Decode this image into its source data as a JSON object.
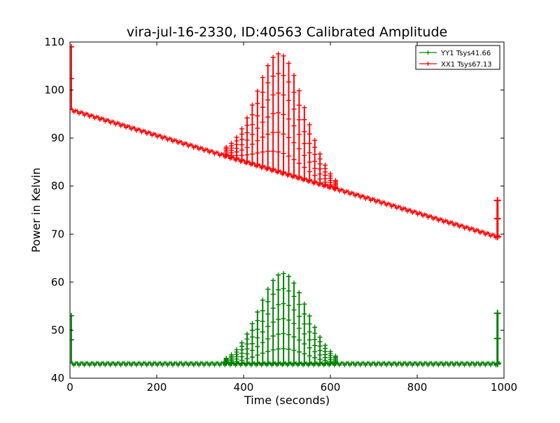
{
  "chart_data": {
    "type": "line",
    "title": "vira-jul-16-2330, ID:40563 Calibrated Amplitude",
    "xlabel": "Time (seconds)",
    "ylabel": "Power in Kelvin",
    "xlim": [
      0,
      1000
    ],
    "ylim": [
      40,
      110
    ],
    "xticks": [
      0,
      200,
      400,
      600,
      800,
      1000
    ],
    "yticks": [
      40,
      50,
      60,
      70,
      80,
      90,
      100,
      110
    ],
    "grid": false,
    "legend_position": "top-right",
    "series": [
      {
        "name": "YY1 Tsys41.66",
        "color": "#008000",
        "marker": "+",
        "baseline": [
          [
            0,
            43.0
          ],
          [
            1000,
            43.0
          ]
        ],
        "ripple_amplitude": 0.3,
        "burst_peak_x": 490,
        "burst_peak_y": 61.8,
        "burst_range": [
          360,
          615
        ],
        "start_spike": {
          "x": 3,
          "y": 53
        },
        "end_spike": {
          "x": 985,
          "y": 53.5
        },
        "x_end": 990
      },
      {
        "name": "XX1 Tsys67.13",
        "color": "#ff0000",
        "marker": "+",
        "baseline": [
          [
            5,
            95.8
          ],
          [
            990,
            69.3
          ]
        ],
        "ripple_amplitude": 0.3,
        "burst_peak_x": 485,
        "burst_peak_y": 107.5,
        "burst_range": [
          360,
          615
        ],
        "start_spike": {
          "x": 3,
          "y": 109
        },
        "end_spike": {
          "x": 985,
          "y": 77
        },
        "x_end": 990
      }
    ]
  }
}
